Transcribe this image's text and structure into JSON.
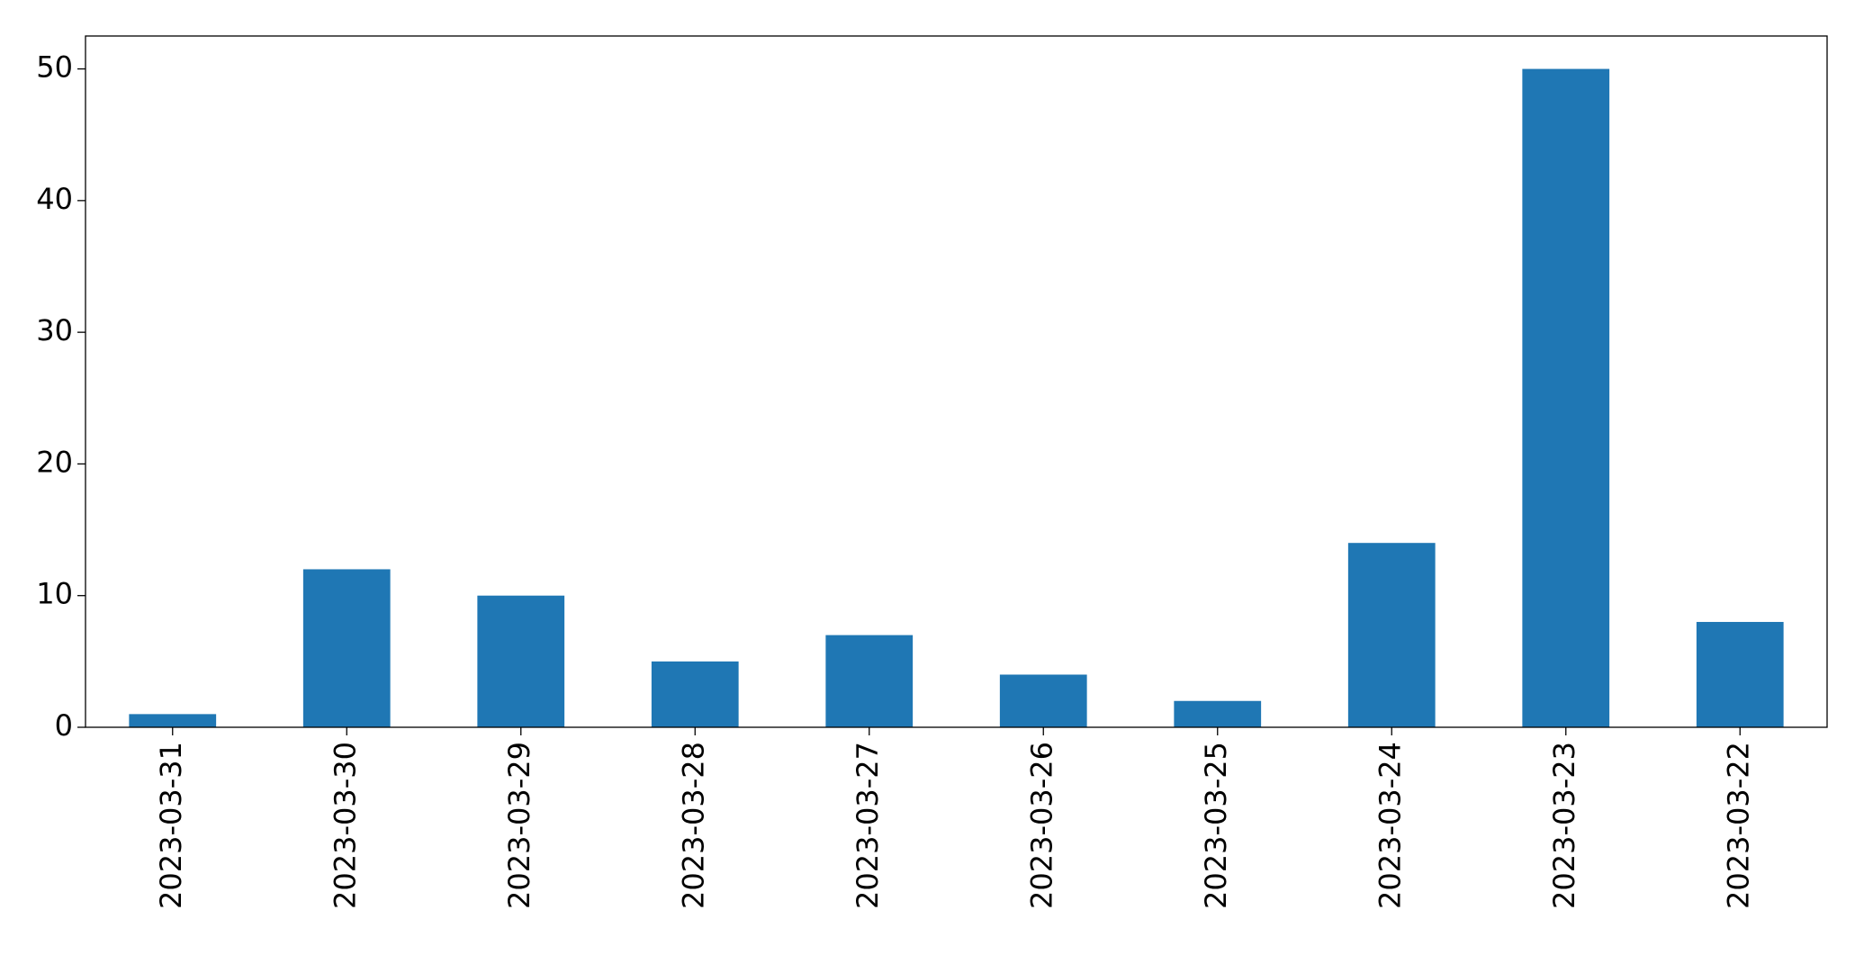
{
  "chart_data": {
    "type": "bar",
    "categories": [
      "2023-03-31",
      "2023-03-30",
      "2023-03-29",
      "2023-03-28",
      "2023-03-27",
      "2023-03-26",
      "2023-03-25",
      "2023-03-24",
      "2023-03-23",
      "2023-03-22"
    ],
    "values": [
      1,
      12,
      10,
      5,
      7,
      4,
      2,
      14,
      50,
      8
    ],
    "color": "#1f77b4",
    "ylim": [
      0,
      52.5
    ],
    "yticks": [
      0,
      10,
      20,
      30,
      40,
      50
    ],
    "grid": false
  }
}
